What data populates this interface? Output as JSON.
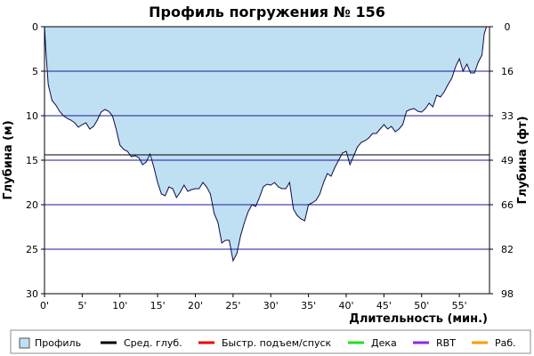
{
  "chart_data": {
    "type": "area",
    "title": "Профиль погружения № 156",
    "xlabel": "Длительность (мин.)",
    "ylabel_left": "Глубина (м)",
    "ylabel_right": "Глубина (фт)",
    "xlim": [
      0,
      59
    ],
    "ylim": [
      0,
      30
    ],
    "y_inverted": true,
    "x_ticks": [
      {
        "v": 0,
        "label": "0'"
      },
      {
        "v": 5,
        "label": "5'"
      },
      {
        "v": 10,
        "label": "10'"
      },
      {
        "v": 15,
        "label": "15'"
      },
      {
        "v": 20,
        "label": "20'"
      },
      {
        "v": 25,
        "label": "25'"
      },
      {
        "v": 30,
        "label": "30'"
      },
      {
        "v": 35,
        "label": "35'"
      },
      {
        "v": 40,
        "label": "40'"
      },
      {
        "v": 45,
        "label": "45'"
      },
      {
        "v": 50,
        "label": "50'"
      },
      {
        "v": 55,
        "label": "55'"
      }
    ],
    "y_ticks_left": [
      {
        "v": 0,
        "label": "0"
      },
      {
        "v": 5,
        "label": "5"
      },
      {
        "v": 10,
        "label": "10"
      },
      {
        "v": 15,
        "label": "15"
      },
      {
        "v": 20,
        "label": "20"
      },
      {
        "v": 25,
        "label": "25"
      },
      {
        "v": 30,
        "label": "30"
      }
    ],
    "y_ticks_right": [
      {
        "v": 0,
        "label": "0"
      },
      {
        "v": 5,
        "label": "16"
      },
      {
        "v": 10,
        "label": "33"
      },
      {
        "v": 15,
        "label": "49"
      },
      {
        "v": 20,
        "label": "66"
      },
      {
        "v": 25,
        "label": "82"
      },
      {
        "v": 30,
        "label": "98"
      }
    ],
    "gridlines_y": [
      5,
      10,
      15,
      20,
      25
    ],
    "avg_depth_line": 14.4,
    "series": [
      {
        "name": "Профиль",
        "color": "#bfe0f2",
        "x": [
          0,
          0.2,
          0.5,
          1,
          1.5,
          2,
          2.5,
          3,
          3.5,
          4,
          4.5,
          5,
          5.5,
          6,
          6.5,
          7,
          7.5,
          8,
          8.5,
          9,
          9.5,
          10,
          10.5,
          11,
          11.5,
          12,
          12.5,
          13,
          13.5,
          14,
          14.5,
          15,
          15.5,
          16,
          16.5,
          17,
          17.5,
          18,
          18.5,
          19,
          19.5,
          20,
          20.5,
          21,
          21.5,
          22,
          22.5,
          23,
          23.5,
          24,
          24.5,
          25,
          25.5,
          26,
          26.5,
          27,
          27.5,
          28,
          28.5,
          29,
          29.5,
          30,
          30.5,
          31,
          31.5,
          32,
          32.5,
          33,
          33.5,
          34,
          34.5,
          35,
          35.5,
          36,
          36.5,
          37,
          37.5,
          38,
          38.5,
          39,
          39.5,
          40,
          40.5,
          41,
          41.5,
          42,
          42.5,
          43,
          43.5,
          44,
          44.5,
          45,
          45.5,
          46,
          46.5,
          47,
          47.5,
          48,
          48.5,
          49,
          49.5,
          50,
          50.5,
          51,
          51.5,
          52,
          52.5,
          53,
          53.5,
          54,
          54.5,
          55,
          55.5,
          56,
          56.5,
          57,
          57.5,
          58,
          58.3,
          58.6
        ],
        "values": [
          0,
          3,
          6.5,
          8.3,
          8.8,
          9.5,
          10,
          10.3,
          10.5,
          10.8,
          11.3,
          11,
          10.8,
          11.5,
          11.2,
          10.5,
          9.6,
          9.3,
          9.5,
          10,
          11.5,
          13.3,
          13.8,
          14,
          14.6,
          14.5,
          14.7,
          15.5,
          15.2,
          14.3,
          15.8,
          17.5,
          18.8,
          19,
          18,
          18.2,
          19.2,
          18.6,
          17.8,
          18.5,
          18.3,
          18.2,
          18.2,
          17.5,
          18,
          18.8,
          21,
          22,
          24.3,
          24,
          24,
          26.3,
          25.5,
          23.5,
          22,
          20.8,
          20,
          20.2,
          19.2,
          18,
          17.7,
          17.8,
          17.5,
          18,
          18.2,
          18.2,
          17.5,
          20.5,
          21.2,
          21.6,
          21.8,
          20,
          19.8,
          19.5,
          18.8,
          17.5,
          16.5,
          16.8,
          15.8,
          15,
          14.2,
          14,
          15.5,
          14.5,
          13.5,
          13,
          12.8,
          12.5,
          12,
          12,
          11.5,
          11,
          11.5,
          11.2,
          11.8,
          11.5,
          11,
          9.5,
          9.3,
          9.2,
          9.5,
          9.6,
          9.2,
          8.6,
          9,
          7.7,
          7.9,
          7.3,
          6.5,
          5.8,
          4.5,
          3.6,
          5,
          4.2,
          5.2,
          5.2,
          4,
          3.2,
          0.8,
          0
        ],
        "stroke_color": "#0c0c4a"
      }
    ],
    "legend": [
      {
        "name": "Профиль",
        "color": "#bfe0f2",
        "kind": "box"
      },
      {
        "name": "Сред. глуб.",
        "color": "#000000",
        "kind": "line"
      },
      {
        "name": "Быстр. подъем/спуск",
        "color": "#ee0000",
        "kind": "line"
      },
      {
        "name": "Дека",
        "color": "#22dd22",
        "kind": "line"
      },
      {
        "name": "RBT",
        "color": "#8a2be2",
        "kind": "line"
      },
      {
        "name": "Раб.",
        "color": "#ff9900",
        "kind": "line"
      }
    ],
    "grid_color": "#1a1aa0",
    "legend_placement": "bottom"
  }
}
